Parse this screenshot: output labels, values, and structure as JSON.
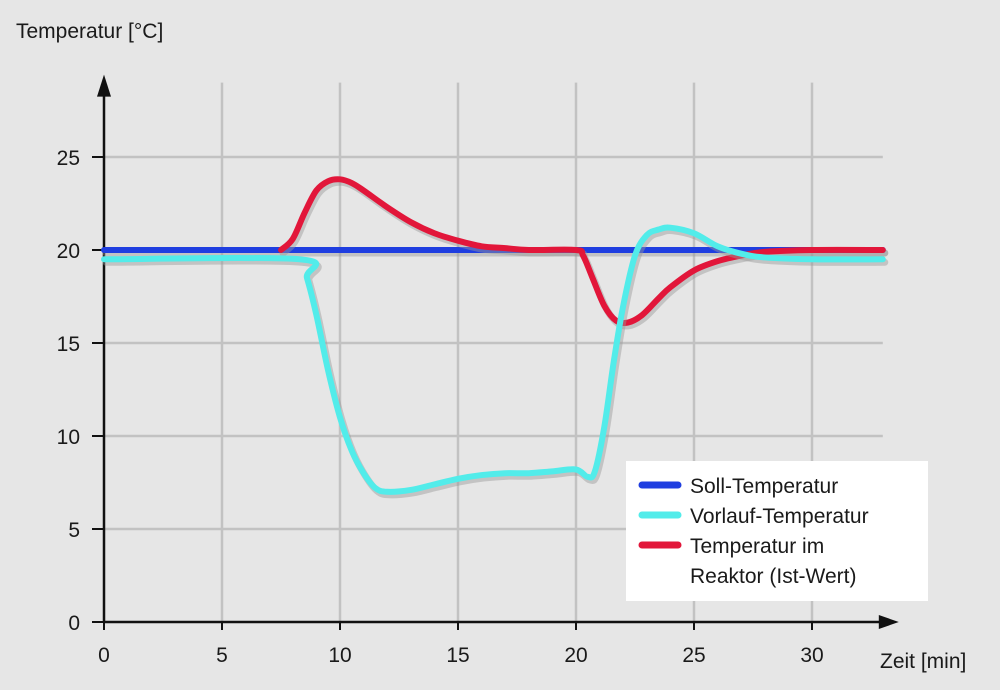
{
  "chart_data": {
    "type": "line",
    "title": "",
    "xlabel": "Zeit [min]",
    "ylabel": "Temperatur [°C]",
    "xlim": [
      0,
      33
    ],
    "ylim": [
      0,
      29
    ],
    "x_ticks": [
      0,
      5,
      10,
      15,
      20,
      25,
      30
    ],
    "y_ticks": [
      0,
      5,
      10,
      15,
      20,
      25
    ],
    "grid": true,
    "legend_position": "bottom-right",
    "series": [
      {
        "name": "Soll-Temperatur",
        "color": "#1f3ee0",
        "points": [
          [
            0,
            20
          ],
          [
            33,
            20
          ]
        ]
      },
      {
        "name": "Vorlauf-Temperatur",
        "color": "#52ecea",
        "points": [
          [
            0,
            19.5
          ],
          [
            8.3,
            19.5
          ],
          [
            8.6,
            18.5
          ],
          [
            9.0,
            16.5
          ],
          [
            9.5,
            13.5
          ],
          [
            10.0,
            11.0
          ],
          [
            10.5,
            9.2
          ],
          [
            11.0,
            8.0
          ],
          [
            11.5,
            7.2
          ],
          [
            12.0,
            7.0
          ],
          [
            13.0,
            7.1
          ],
          [
            14.0,
            7.4
          ],
          [
            15.0,
            7.7
          ],
          [
            16.0,
            7.9
          ],
          [
            17.0,
            8.0
          ],
          [
            18.0,
            8.0
          ],
          [
            19.0,
            8.1
          ],
          [
            20.0,
            8.2
          ],
          [
            20.5,
            7.8
          ],
          [
            20.8,
            8.1
          ],
          [
            21.2,
            10.5
          ],
          [
            21.6,
            14.0
          ],
          [
            22.0,
            17.0
          ],
          [
            22.5,
            19.7
          ],
          [
            23.0,
            20.8
          ],
          [
            23.5,
            21.1
          ],
          [
            24.0,
            21.2
          ],
          [
            25.0,
            20.9
          ],
          [
            26.0,
            20.2
          ],
          [
            27.0,
            19.8
          ],
          [
            28.0,
            19.6
          ],
          [
            30.0,
            19.5
          ],
          [
            33.0,
            19.5
          ]
        ]
      },
      {
        "name": "Temperatur im Reaktor (Ist-Wert)",
        "color": "#e2163a",
        "points": [
          [
            7.5,
            20.0
          ],
          [
            8.0,
            20.6
          ],
          [
            8.5,
            22.0
          ],
          [
            9.0,
            23.2
          ],
          [
            9.5,
            23.7
          ],
          [
            10.0,
            23.8
          ],
          [
            10.5,
            23.6
          ],
          [
            11.0,
            23.2
          ],
          [
            12.0,
            22.3
          ],
          [
            13.0,
            21.5
          ],
          [
            14.0,
            20.9
          ],
          [
            15.0,
            20.5
          ],
          [
            16.0,
            20.2
          ],
          [
            17.0,
            20.1
          ],
          [
            18.0,
            20.0
          ],
          [
            20.0,
            20.0
          ],
          [
            20.3,
            19.7
          ],
          [
            20.7,
            18.5
          ],
          [
            21.2,
            17.0
          ],
          [
            21.7,
            16.2
          ],
          [
            22.2,
            16.1
          ],
          [
            22.8,
            16.5
          ],
          [
            23.5,
            17.4
          ],
          [
            24.0,
            18.0
          ],
          [
            25.0,
            18.9
          ],
          [
            26.0,
            19.4
          ],
          [
            27.0,
            19.7
          ],
          [
            28.0,
            19.9
          ],
          [
            30.0,
            20.0
          ],
          [
            33.0,
            20.0
          ]
        ]
      }
    ],
    "legend": {
      "items": [
        {
          "label_lines": [
            "Soll-Temperatur"
          ],
          "color": "#1f3ee0"
        },
        {
          "label_lines": [
            "Vorlauf-Temperatur"
          ],
          "color": "#52ecea"
        },
        {
          "label_lines": [
            "Temperatur im",
            "Reaktor (Ist-Wert)"
          ],
          "color": "#e2163a"
        }
      ]
    }
  }
}
